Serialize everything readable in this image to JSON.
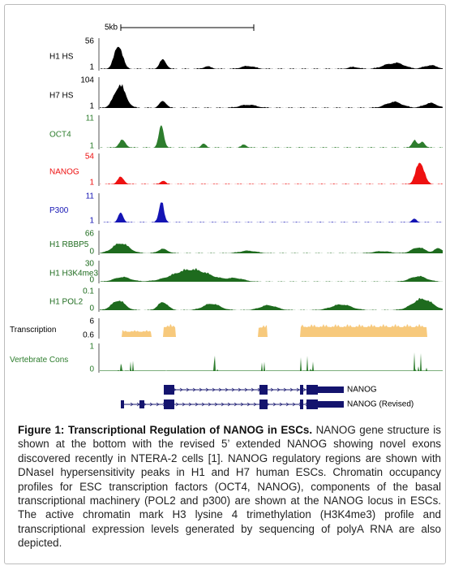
{
  "scale": "5kb",
  "tracks": [
    {
      "label": "H1 HS",
      "max": 56,
      "min": 1,
      "color": "#000000",
      "label_color": "#000000"
    },
    {
      "label": "H7 HS",
      "max": 104,
      "min": 1,
      "color": "#000000",
      "label_color": "#000000"
    },
    {
      "label": "OCT4",
      "max": 11,
      "min": 1,
      "color": "#2d7d2d",
      "label_color": "#2d7d2d"
    },
    {
      "label": "NANOG",
      "max": 54,
      "min": 1,
      "color": "#ee1111",
      "label_color": "#ee1111"
    },
    {
      "label": "P300",
      "max": 11,
      "min": 1,
      "color": "#1414b4",
      "label_color": "#1414b4"
    },
    {
      "label": "H1 RBBP5",
      "max": 66,
      "min": 0,
      "color": "#1e6b1e",
      "label_color": "#1e6b1e"
    },
    {
      "label": "H1 H3K4me3",
      "max": 30,
      "min": 0,
      "color": "#1e6b1e",
      "label_color": "#1e6b1e"
    },
    {
      "label": "H1 POL2",
      "max": 0.1,
      "min": 0,
      "color": "#1e6b1e",
      "label_color": "#1e6b1e"
    },
    {
      "label": "Transcription",
      "max": 6,
      "min": 0.6,
      "color": "#f7c97c",
      "label_color": "#000000"
    },
    {
      "label": "Vertebrate Cons",
      "max": 1,
      "min": 0,
      "color": "#2d7d2d",
      "label_color": "#2d7d2d"
    }
  ],
  "genes": [
    "NANOG",
    "NANOG (Revised)"
  ],
  "caption": {
    "title": "Figure 1: Transcriptional Regulation of NANOG in ESCs.",
    "text": "NANOG gene structure is shown at the bottom with the revised 5’ extended NANOG showing novel exons discovered recently in NTERA-2 cells [1]. NANOG regulatory regions are shown with DNaseI hypersensitivity peaks in H1 and H7 human ESCs. Chromatin occupancy profiles for ESC transcription factors (OCT4, NANOG), components of the basal transcriptional machinery (POL2 and p300) are shown at the NANOG locus in ESCs. The active chromatin mark H3 lysine 4 trimethylation (H3K4me3) profile and transcriptional expression levels generated by sequencing of polyA RNA are also depicted."
  }
}
